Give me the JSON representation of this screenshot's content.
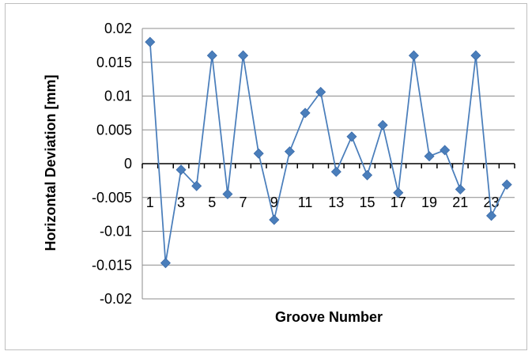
{
  "chart_data": {
    "type": "line",
    "title": "",
    "xlabel": "Groove Number",
    "ylabel": "Horizontal Deviation [mm]",
    "ylim": [
      -0.02,
      0.02
    ],
    "y_ticks": [
      "0.02",
      "0.015",
      "0.01",
      "0.005",
      "0",
      "-0.005",
      "-0.01",
      "-0.015",
      "-0.02"
    ],
    "y_tick_values": [
      0.02,
      0.015,
      0.01,
      0.005,
      0,
      -0.005,
      -0.01,
      -0.015,
      -0.02
    ],
    "x_tick_labels": [
      "1",
      "3",
      "5",
      "7",
      "9",
      "11",
      "13",
      "15",
      "17",
      "19",
      "21",
      "23"
    ],
    "x_tick_values": [
      1,
      3,
      5,
      7,
      9,
      11,
      13,
      15,
      17,
      19,
      21,
      23
    ],
    "grid": true,
    "legend": "none",
    "series": [
      {
        "x": [
          1,
          2,
          3,
          4,
          5,
          6,
          7,
          8,
          9,
          10,
          11,
          12,
          13,
          14,
          15,
          16,
          17,
          18,
          19,
          20,
          21,
          22,
          23,
          24
        ],
        "values": [
          0.018,
          -0.0147,
          -0.0009,
          -0.0033,
          0.016,
          -0.0045,
          0.016,
          0.0015,
          -0.0083,
          0.0018,
          0.0075,
          0.0106,
          -0.0012,
          0.004,
          -0.0017,
          0.0057,
          -0.0043,
          0.016,
          0.0011,
          0.002,
          -0.0038,
          0.016,
          -0.0077,
          -0.0031
        ],
        "color": "#4a7ebb",
        "marker": "diamond"
      }
    ]
  }
}
